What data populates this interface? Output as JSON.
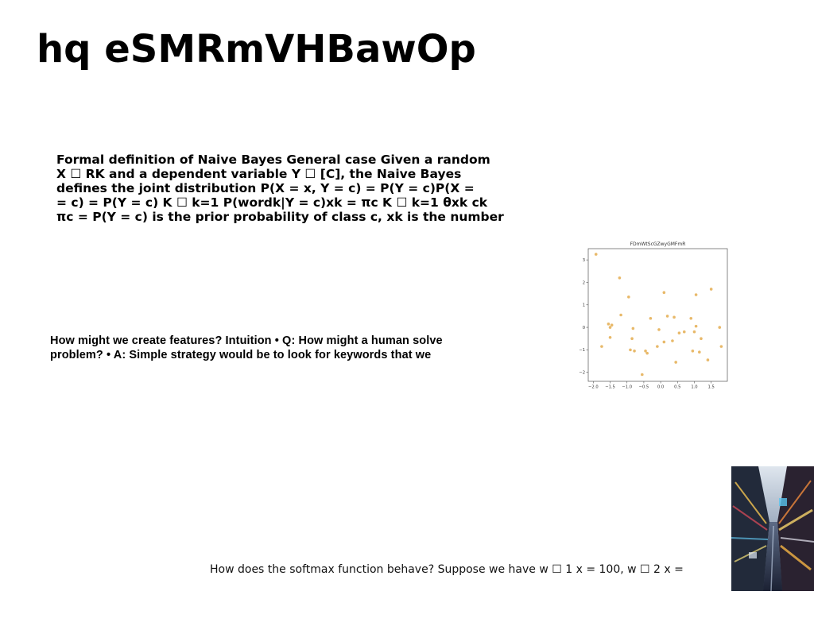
{
  "slide": {
    "title": "hq eSMRmVHBawOp",
    "paragraph1_lines": [
      "Formal definition of Naive Bayes General case Given a random",
      "X ☐ RK and a dependent variable Y ☐ [C], the Naive Bayes",
      "defines the joint distribution P(X = x, Y = c) = P(Y = c)P(X =",
      "= c) = P(Y = c) K ☐ k=1 P(wordk|Y = c)xk = πc K ☐ k=1 θxk ck",
      "πc = P(Y = c) is the prior probability of class c, xk is the number"
    ],
    "paragraph2_lines": [
      "How might we create features? Intuition • Q: How might a human solve",
      "problem? • A: Simple strategy would be to look for keywords that we"
    ],
    "paragraph3": "How does the softmax function behave? Suppose we have w ☐ 1 x = 100, w ☐ 2 x ="
  },
  "chart_data": {
    "type": "scatter",
    "title": "FDmWtScGZwyGMFmR",
    "xlabel": "",
    "ylabel": "",
    "xlim": [
      -2.15,
      1.98
    ],
    "ylim": [
      -2.4,
      3.5
    ],
    "xticks": [
      -2.0,
      -1.5,
      -1.0,
      -0.5,
      0.0,
      0.5,
      1.0,
      1.5
    ],
    "xtick_labels": [
      "−2.0",
      "−1.5",
      "−1.0",
      "−0.5",
      "0.0",
      "0.5",
      "1.0",
      "1.5"
    ],
    "yticks": [
      -2,
      -1,
      0,
      1,
      2,
      3
    ],
    "ytick_labels": [
      "−2",
      "−1",
      "0",
      "1",
      "2",
      "3"
    ],
    "color": "#e8b96a",
    "grid": false,
    "points": [
      {
        "x": -1.92,
        "y": 3.25
      },
      {
        "x": -1.75,
        "y": -0.85
      },
      {
        "x": -1.55,
        "y": 0.15
      },
      {
        "x": -1.5,
        "y": 0.0
      },
      {
        "x": -1.5,
        "y": -0.45
      },
      {
        "x": -1.45,
        "y": 0.1
      },
      {
        "x": -1.22,
        "y": 2.2
      },
      {
        "x": -1.18,
        "y": 0.55
      },
      {
        "x": -0.95,
        "y": 1.35
      },
      {
        "x": -0.9,
        "y": -1.0
      },
      {
        "x": -0.85,
        "y": -0.5
      },
      {
        "x": -0.82,
        "y": -0.05
      },
      {
        "x": -0.78,
        "y": -1.05
      },
      {
        "x": -0.55,
        "y": -2.1
      },
      {
        "x": -0.45,
        "y": -1.05
      },
      {
        "x": -0.4,
        "y": -1.15
      },
      {
        "x": -0.3,
        "y": 0.4
      },
      {
        "x": -0.1,
        "y": -0.85
      },
      {
        "x": -0.05,
        "y": -0.1
      },
      {
        "x": 0.1,
        "y": -0.65
      },
      {
        "x": 0.1,
        "y": 1.55
      },
      {
        "x": 0.2,
        "y": 0.5
      },
      {
        "x": 0.35,
        "y": -0.6
      },
      {
        "x": 0.4,
        "y": 0.45
      },
      {
        "x": 0.45,
        "y": -1.55
      },
      {
        "x": 0.55,
        "y": -0.25
      },
      {
        "x": 0.7,
        "y": -0.2
      },
      {
        "x": 0.9,
        "y": 0.4
      },
      {
        "x": 0.95,
        "y": -1.05
      },
      {
        "x": 1.0,
        "y": -0.2
      },
      {
        "x": 1.05,
        "y": 1.45
      },
      {
        "x": 1.05,
        "y": 0.05
      },
      {
        "x": 1.15,
        "y": -1.1
      },
      {
        "x": 1.2,
        "y": -0.5
      },
      {
        "x": 1.4,
        "y": -1.45
      },
      {
        "x": 1.5,
        "y": 1.7
      },
      {
        "x": 1.75,
        "y": 0.0
      },
      {
        "x": 1.8,
        "y": -0.85
      }
    ]
  },
  "photo": {
    "description_icon": "city-street-photo-icon"
  }
}
